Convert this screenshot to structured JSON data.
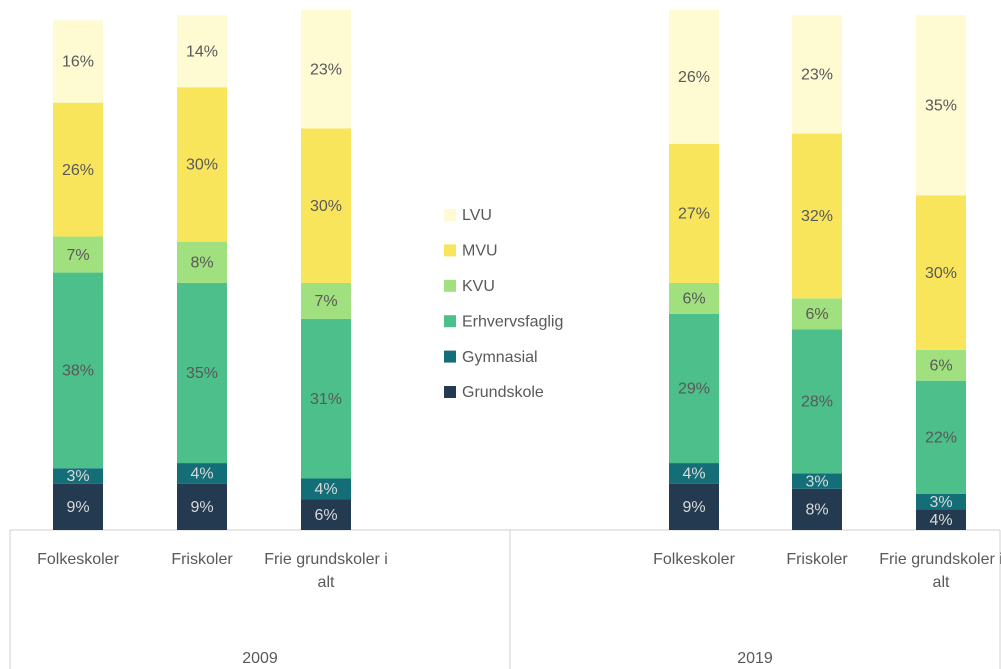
{
  "chart_data": {
    "type": "stacked_bar",
    "categories": [
      "Folkeskoler",
      "Friskoler",
      "Frie grundskoler i alt",
      "Folkeskoler",
      "Friskoler",
      "Frie grundskoler i alt"
    ],
    "groups": [
      {
        "name": "2009",
        "size": 3
      },
      {
        "name": "2019",
        "size": 3
      }
    ],
    "series": [
      {
        "name": "Grundskole",
        "color": "#243a50",
        "values": [
          9,
          9,
          6,
          9,
          8,
          4
        ],
        "value_labels": [
          "9%",
          "9%",
          "6%",
          "9%",
          "8%",
          "4%"
        ]
      },
      {
        "name": "Gymnasial",
        "color": "#146e78",
        "values": [
          3,
          4,
          4,
          4,
          3,
          3
        ],
        "value_labels": [
          "3%",
          "4%",
          "4%",
          "4%",
          "3%",
          "3%"
        ]
      },
      {
        "name": "Erhvervsfaglig",
        "color": "#4cbf8b",
        "values": [
          38,
          35,
          31,
          29,
          28,
          22
        ],
        "value_labels": [
          "38%",
          "35%",
          "31%",
          "29%",
          "28%",
          "22%"
        ]
      },
      {
        "name": "KVU",
        "color": "#a0e07e",
        "values": [
          7,
          8,
          7,
          6,
          6,
          6
        ],
        "value_labels": [
          "7%",
          "8%",
          "7%",
          "6%",
          "6%",
          "6%"
        ]
      },
      {
        "name": "MVU",
        "color": "#f9e55b",
        "values": [
          26,
          30,
          30,
          27,
          32,
          30
        ],
        "value_labels": [
          "26%",
          "30%",
          "30%",
          "27%",
          "32%",
          "30%"
        ]
      },
      {
        "name": "LVU",
        "color": "#fefbd2",
        "values": [
          16,
          14,
          23,
          26,
          23,
          35
        ],
        "value_labels": [
          "16%",
          "14%",
          "23%",
          "26%",
          "23%",
          "35%"
        ]
      }
    ]
  }
}
